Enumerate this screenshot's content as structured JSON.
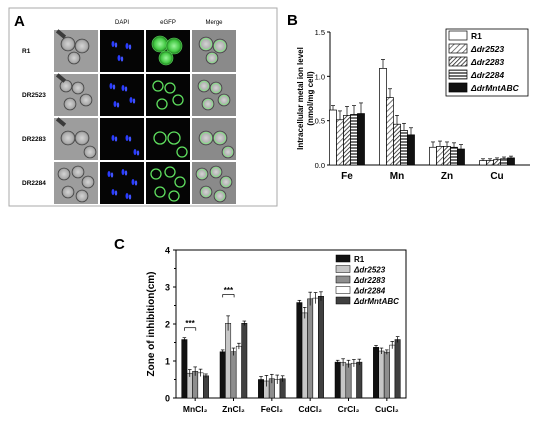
{
  "panels": {
    "A": {
      "letter": "A",
      "columns": [
        "DAPI",
        "eGFP",
        "Merge"
      ],
      "rows": [
        "R1",
        "DR2523",
        "DR2283",
        "DR2284"
      ]
    },
    "B": {
      "letter": "B"
    },
    "C": {
      "letter": "C"
    }
  },
  "colors": {
    "black": "#111111",
    "light_gray": "#c6c6c6",
    "mid_gray": "#8e8e8e",
    "white": "#ffffff",
    "dark_gray": "#404040",
    "dapi_blue": "#2a3cff",
    "egfp_green": "#5fe05f"
  },
  "chart_data": [
    {
      "id": "B",
      "type": "bar",
      "title": "",
      "ylabel": "Intracellular metal ion level (nmol/mg cell)",
      "xlabel": "",
      "categories": [
        "Fe",
        "Mn",
        "Zn",
        "Cu"
      ],
      "ylim": [
        0,
        1.5
      ],
      "yticks": [
        "0.0",
        "0.5",
        "1.0",
        "1.5"
      ],
      "legend_position": "top-right",
      "series": [
        {
          "name": "R1",
          "values": [
            0.62,
            1.09,
            0.2,
            0.05
          ],
          "errors": [
            0.05,
            0.1,
            0.06,
            0.02
          ],
          "pattern": "white"
        },
        {
          "name": "Δdr2523",
          "values": [
            0.51,
            0.76,
            0.21,
            0.05
          ],
          "errors": [
            0.1,
            0.1,
            0.06,
            0.02
          ],
          "pattern": "diag"
        },
        {
          "name": "Δdr2283",
          "values": [
            0.56,
            0.46,
            0.21,
            0.06
          ],
          "errors": [
            0.1,
            0.1,
            0.05,
            0.02
          ],
          "pattern": "diagdense"
        },
        {
          "name": "Δdr2284",
          "values": [
            0.57,
            0.39,
            0.2,
            0.07
          ],
          "errors": [
            0.1,
            0.08,
            0.05,
            0.02
          ],
          "pattern": "horiz"
        },
        {
          "name": "ΔdrMntABC",
          "values": [
            0.58,
            0.34,
            0.18,
            0.08
          ],
          "errors": [
            0.12,
            0.08,
            0.05,
            0.02
          ],
          "pattern": "black"
        }
      ]
    },
    {
      "id": "C",
      "type": "bar",
      "title": "",
      "ylabel": "Zone of inhibition(cm)",
      "xlabel": "",
      "categories": [
        "MnCl₂",
        "ZnCl₂",
        "FeCl₂",
        "CdCl₂",
        "CrCl₂",
        "CuCl₂"
      ],
      "ylim": [
        0,
        4
      ],
      "yticks": [
        "0",
        "1",
        "2",
        "3",
        "4"
      ],
      "legend_position": "top-right",
      "annotations": [
        {
          "text": "***",
          "category": "MnCl₂",
          "y": 1.9
        },
        {
          "text": "***",
          "category": "ZnCl₂",
          "y": 2.8
        }
      ],
      "series": [
        {
          "name": "R1",
          "values": [
            1.58,
            1.25,
            0.5,
            2.58,
            0.97,
            1.37
          ],
          "errors": [
            0.05,
            0.05,
            0.08,
            0.06,
            0.05,
            0.05
          ],
          "color": "#111111"
        },
        {
          "name": "Δdr2523",
          "values": [
            0.67,
            2.02,
            0.46,
            2.3,
            0.96,
            1.27
          ],
          "errors": [
            0.1,
            0.2,
            0.15,
            0.15,
            0.1,
            0.08
          ],
          "color": "#c6c6c6"
        },
        {
          "name": "Δdr2283",
          "values": [
            0.72,
            1.25,
            0.52,
            2.68,
            0.92,
            1.24
          ],
          "errors": [
            0.12,
            0.1,
            0.12,
            0.18,
            0.1,
            0.06
          ],
          "color": "#8e8e8e"
        },
        {
          "name": "Δdr2284",
          "values": [
            0.68,
            1.4,
            0.5,
            2.7,
            0.94,
            1.43
          ],
          "errors": [
            0.1,
            0.08,
            0.12,
            0.15,
            0.1,
            0.1
          ],
          "color": "#ffffff"
        },
        {
          "name": "ΔdrMntABC",
          "values": [
            0.6,
            2.02,
            0.52,
            2.75,
            0.97,
            1.58
          ],
          "errors": [
            0.05,
            0.06,
            0.08,
            0.12,
            0.08,
            0.08
          ],
          "color": "#404040"
        }
      ]
    }
  ]
}
